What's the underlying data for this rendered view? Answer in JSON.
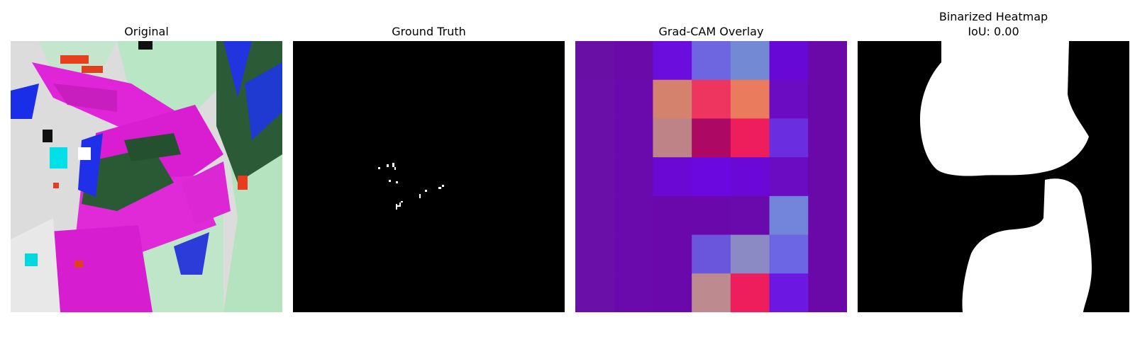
{
  "panels": [
    {
      "title": "Original"
    },
    {
      "title": "Ground Truth"
    },
    {
      "title": "Grad-CAM Overlay"
    },
    {
      "title": "Binarized Heatmap",
      "subtitle": "IoU: 0.00"
    }
  ],
  "gradcam_grid": [
    [
      "#6a0fa6",
      "#6a0aa8",
      "#6b0ddc",
      "#6e66e0",
      "#7389d4",
      "#6808d6",
      "#6a08a8"
    ],
    [
      "#6a0fa8",
      "#6a0aac",
      "#d4826d",
      "#ee3560",
      "#ea7b5c",
      "#6b0cc2",
      "#6a08a8"
    ],
    [
      "#6a0fa8",
      "#6a0aac",
      "#bd8387",
      "#ad0864",
      "#ee1d5c",
      "#6a2ee0",
      "#6a08a8"
    ],
    [
      "#6a0fa8",
      "#6a0aac",
      "#6b08d4",
      "#6b08e0",
      "#6b08d8",
      "#6b0cc2",
      "#6a08a8"
    ],
    [
      "#6a0fa8",
      "#6a0aac",
      "#6a08ac",
      "#6a08ac",
      "#6b0aac",
      "#7385da",
      "#6a08a8"
    ],
    [
      "#6a0fa8",
      "#6a0aac",
      "#6a08ac",
      "#6a56dc",
      "#8b8ac4",
      "#6d66e4",
      "#6a08a8"
    ],
    [
      "#6a0fa8",
      "#6a0aac",
      "#6a08ac",
      "#bd8a90",
      "#ee1e5c",
      "#6d18e2",
      "#6a08a8"
    ]
  ]
}
